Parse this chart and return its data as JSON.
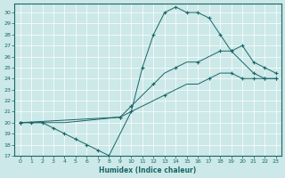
{
  "xlabel": "Humidex (Indice chaleur)",
  "bg_color": "#cce8e8",
  "line_color": "#1a6666",
  "xlim": [
    -0.5,
    23.5
  ],
  "ylim": [
    17,
    30.8
  ],
  "yticks": [
    17,
    18,
    19,
    20,
    21,
    22,
    23,
    24,
    25,
    26,
    27,
    28,
    29,
    30
  ],
  "xticks": [
    0,
    1,
    2,
    3,
    4,
    5,
    6,
    7,
    8,
    9,
    10,
    11,
    12,
    13,
    14,
    15,
    16,
    17,
    18,
    19,
    20,
    21,
    22,
    23
  ],
  "lines": [
    {
      "x": [
        0,
        1,
        2,
        3,
        4,
        5,
        6,
        7,
        8,
        10,
        11,
        12,
        13,
        14,
        15,
        16,
        17,
        18,
        19,
        21,
        22,
        23
      ],
      "y": [
        20,
        20,
        20,
        19.5,
        19,
        18.5,
        18,
        17.5,
        17,
        21,
        25,
        28,
        30,
        30.5,
        30,
        30,
        29.5,
        28,
        26.5,
        24.5,
        24,
        24
      ]
    },
    {
      "x": [
        0,
        2,
        4,
        9,
        10,
        11,
        12,
        13,
        14,
        15,
        16,
        17,
        18,
        19,
        20,
        21,
        22,
        23
      ],
      "y": [
        20,
        20,
        20,
        20.5,
        21.5,
        22.5,
        23.5,
        24.5,
        25,
        25.5,
        25.5,
        26,
        26.5,
        26.5,
        27,
        25.5,
        25,
        24.5
      ]
    },
    {
      "x": [
        0,
        9,
        10,
        11,
        12,
        13,
        14,
        15,
        16,
        17,
        18,
        19,
        20,
        21,
        22,
        23
      ],
      "y": [
        20,
        20.5,
        21,
        21.5,
        22,
        22.5,
        23,
        23.5,
        23.5,
        24,
        24.5,
        24.5,
        24,
        24,
        24,
        24
      ]
    }
  ],
  "marker_lines": [
    {
      "x": [
        0,
        1,
        2,
        3,
        4,
        5,
        6,
        7,
        8,
        10,
        11,
        12,
        13,
        14,
        15,
        16,
        17,
        18,
        19,
        21,
        22,
        23
      ],
      "y": [
        20,
        20,
        20,
        19.5,
        19,
        18.5,
        18,
        17.5,
        17,
        21,
        25,
        28,
        30,
        30.5,
        30,
        30,
        29.5,
        28,
        26.5,
        24.5,
        24,
        24
      ]
    },
    {
      "x": [
        0,
        9,
        10,
        12,
        14,
        16,
        18,
        19,
        20,
        21,
        22,
        23
      ],
      "y": [
        20,
        20.5,
        21.5,
        23.5,
        25,
        25.5,
        26.5,
        26.5,
        27,
        25.5,
        25,
        24.5
      ]
    },
    {
      "x": [
        0,
        9,
        13,
        17,
        19,
        20,
        21,
        22,
        23
      ],
      "y": [
        20,
        20.5,
        22.5,
        24,
        24.5,
        24,
        24,
        24,
        24
      ]
    }
  ]
}
